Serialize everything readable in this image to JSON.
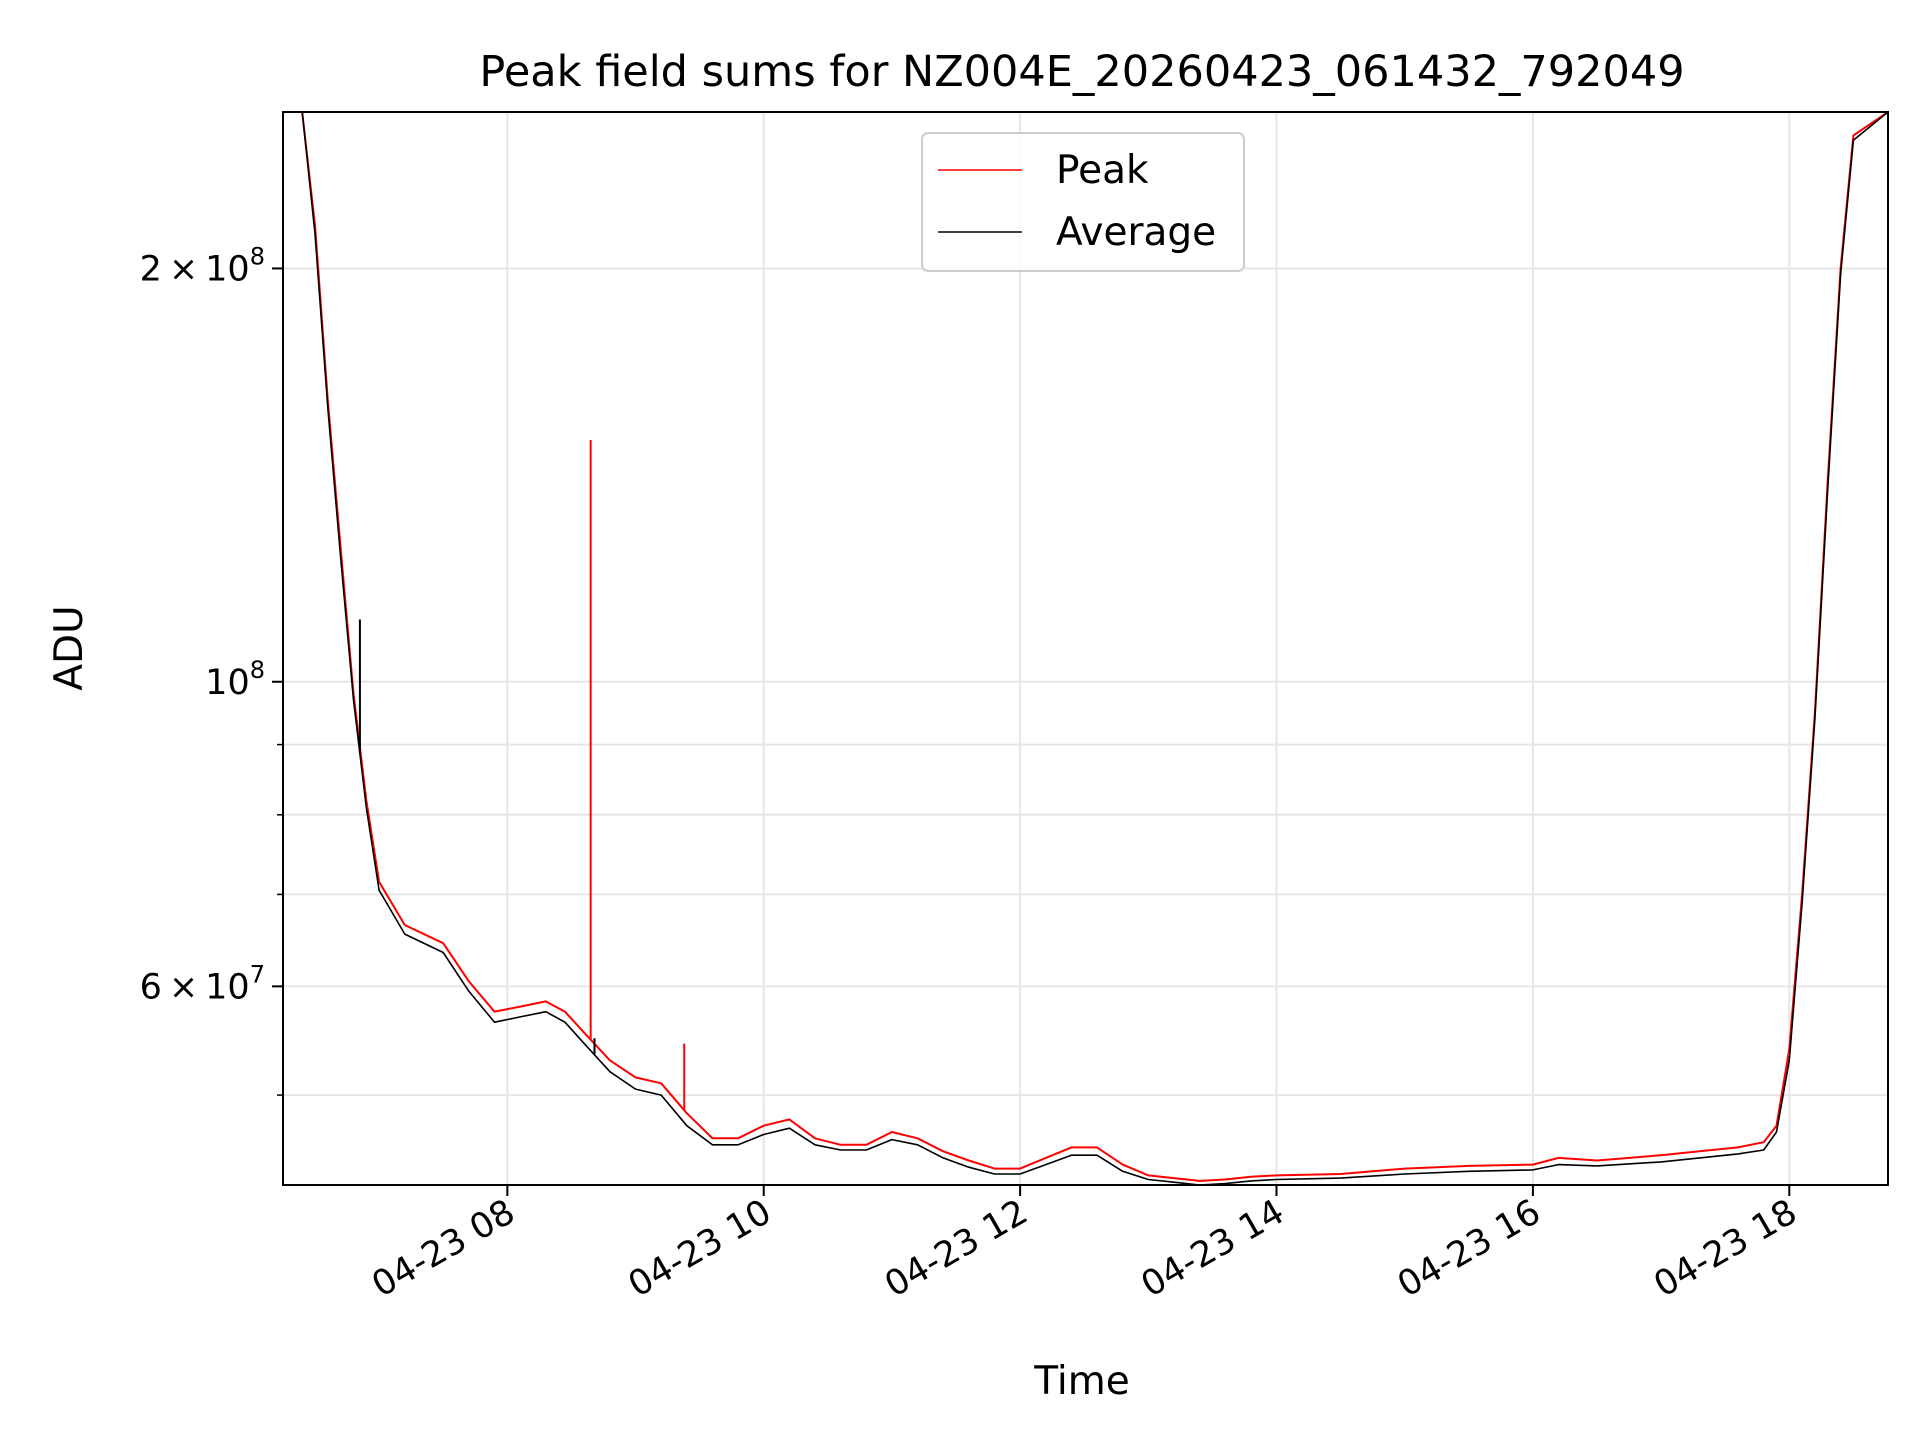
{
  "chart_data": {
    "type": "line",
    "title": "Peak field sums for NZ004E_20260423_061432_792049",
    "xlabel": "Time",
    "ylabel": "ADU",
    "yscale": "log",
    "xlim_hours": [
      6.25,
      18.77
    ],
    "ylim": [
      43000000,
      260000000
    ],
    "grid": true,
    "legend_position": "upper center",
    "x_ticks": [
      {
        "hour": 8,
        "label": "04-23 08"
      },
      {
        "hour": 10,
        "label": "04-23 10"
      },
      {
        "hour": 12,
        "label": "04-23 12"
      },
      {
        "hour": 14,
        "label": "04-23 14"
      },
      {
        "hour": 16,
        "label": "04-23 16"
      },
      {
        "hour": 18,
        "label": "04-23 18"
      }
    ],
    "y_major_ticks": [
      {
        "value": 60000000,
        "mantissa": "6",
        "exponent": "7"
      },
      {
        "value": 100000000,
        "mantissa": "",
        "exponent": "8"
      },
      {
        "value": 200000000,
        "mantissa": "2",
        "exponent": "8"
      }
    ],
    "y_minor_gridlines": [
      50000000,
      70000000,
      80000000,
      90000000
    ],
    "series": [
      {
        "name": "Peak",
        "color": "#ff0000",
        "hours": [
          6.25,
          6.4,
          6.5,
          6.6,
          6.7,
          6.8,
          6.9,
          7.0,
          7.2,
          7.5,
          7.7,
          7.9,
          8.1,
          8.3,
          8.45,
          8.6,
          8.8,
          9.0,
          9.2,
          9.4,
          9.6,
          9.8,
          10.0,
          10.2,
          10.4,
          10.6,
          10.8,
          11.0,
          11.2,
          11.4,
          11.6,
          11.8,
          12.0,
          12.2,
          12.4,
          12.6,
          12.8,
          13.0,
          13.2,
          13.4,
          13.6,
          13.8,
          14.0,
          14.5,
          15.0,
          15.5,
          16.0,
          16.2,
          16.5,
          17.0,
          17.3,
          17.6,
          17.8,
          17.9,
          18.0,
          18.1,
          18.2,
          18.3,
          18.4,
          18.5,
          18.77
        ],
        "values": [
          260000000,
          260000000,
          215000000,
          160000000,
          125000000,
          98000000,
          82000000,
          71500000,
          66500000,
          64500000,
          60500000,
          57500000,
          58000000,
          58500000,
          57500000,
          55500000,
          53000000,
          51500000,
          51000000,
          48500000,
          46500000,
          46500000,
          47500000,
          48000000,
          46500000,
          46000000,
          46000000,
          47000000,
          46500000,
          45500000,
          44800000,
          44200000,
          44200000,
          45000000,
          45800000,
          45800000,
          44500000,
          43700000,
          43500000,
          43300000,
          43400000,
          43600000,
          43700000,
          43800000,
          44200000,
          44400000,
          44500000,
          45000000,
          44800000,
          45200000,
          45500000,
          45800000,
          46200000,
          47500000,
          54000000,
          70000000,
          95000000,
          140000000,
          200000000,
          250000000,
          260000000
        ]
      },
      {
        "name": "Average",
        "color": "#000000",
        "hours": [
          6.25,
          6.4,
          6.5,
          6.6,
          6.7,
          6.8,
          6.9,
          7.0,
          7.2,
          7.5,
          7.7,
          7.9,
          8.1,
          8.3,
          8.45,
          8.6,
          8.8,
          9.0,
          9.2,
          9.4,
          9.6,
          9.8,
          10.0,
          10.2,
          10.4,
          10.6,
          10.8,
          11.0,
          11.2,
          11.4,
          11.6,
          11.8,
          12.0,
          12.2,
          12.4,
          12.6,
          12.8,
          13.0,
          13.2,
          13.4,
          13.6,
          13.8,
          14.0,
          14.5,
          15.0,
          15.5,
          16.0,
          16.2,
          16.5,
          17.0,
          17.3,
          17.6,
          17.8,
          17.9,
          18.0,
          18.1,
          18.2,
          18.3,
          18.4,
          18.5,
          18.77
        ],
        "values": [
          260000000,
          260000000,
          212000000,
          158000000,
          123000000,
          97000000,
          81000000,
          70500000,
          65500000,
          63500000,
          59500000,
          56500000,
          57000000,
          57500000,
          56500000,
          54500000,
          52000000,
          50500000,
          50000000,
          47500000,
          46000000,
          46000000,
          46800000,
          47300000,
          46000000,
          45600000,
          45600000,
          46400000,
          46000000,
          45000000,
          44300000,
          43800000,
          43800000,
          44500000,
          45200000,
          45200000,
          44000000,
          43400000,
          43200000,
          43000000,
          43100000,
          43300000,
          43400000,
          43500000,
          43800000,
          44000000,
          44100000,
          44500000,
          44400000,
          44700000,
          45000000,
          45300000,
          45600000,
          47000000,
          53000000,
          69000000,
          94000000,
          138000000,
          198000000,
          248000000,
          260000000
        ]
      }
    ],
    "spikes": [
      {
        "series": "Peak",
        "hour": 8.65,
        "value": 150000000
      },
      {
        "series": "Average",
        "hour": 6.85,
        "value": 111000000
      },
      {
        "series": "Average",
        "hour": 8.68,
        "value": 55000000
      },
      {
        "series": "Peak",
        "hour": 9.38,
        "value": 54500000
      }
    ]
  }
}
